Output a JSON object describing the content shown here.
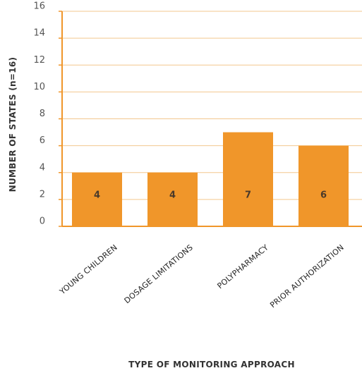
{
  "chart_data": {
    "type": "bar",
    "categories": [
      "YOUNG CHILDREN",
      "DOSAGE LIMITATIONS",
      "POLYPHARMACY",
      "PRIOR AUTHORIZATION"
    ],
    "values": [
      4,
      4,
      7,
      6
    ],
    "data_labels": [
      "4",
      "4",
      "7",
      "6"
    ],
    "xlabel": "TYPE OF MONITORING APPROACH",
    "ylabel": "NUMBER OF STATES (n=16)",
    "ylim": [
      0,
      16
    ],
    "yticks": [
      0,
      2,
      4,
      6,
      8,
      10,
      12,
      14,
      16
    ],
    "grid": true,
    "bar_color": "#f0962a",
    "grid_color": "#f3c78e",
    "axis_color": "#f0962a"
  }
}
